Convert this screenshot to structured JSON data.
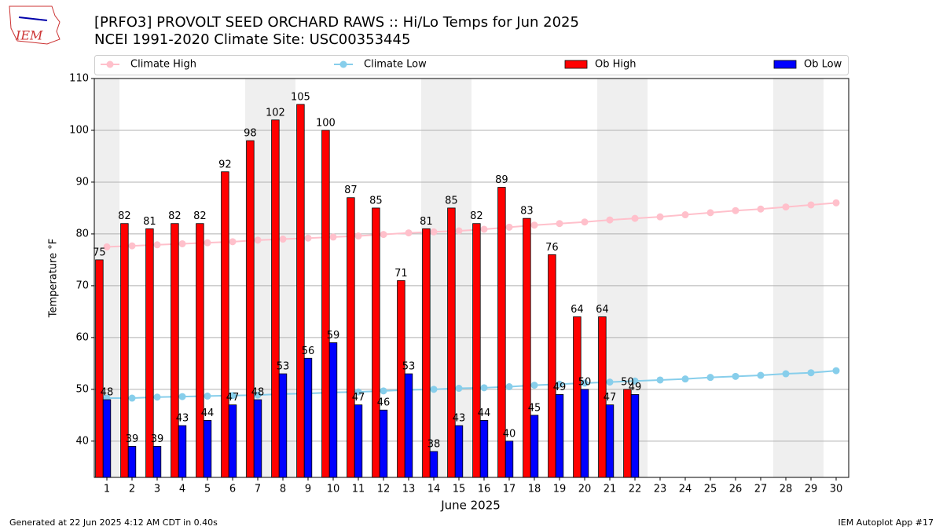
{
  "logo": "IEM",
  "footer_left": "Generated at 22 Jun 2025 4:12 AM CDT in 0.40s",
  "footer_right": "IEM Autoplot App #17",
  "chart_data": {
    "type": "bar",
    "title": "[PRFO3] PROVOLT SEED ORCHARD RAWS :: Hi/Lo Temps for Jun 2025",
    "subtitle": "NCEI 1991-2020 Climate Site: USC00353445",
    "x_label": "June 2025",
    "y_label": "Temperature °F",
    "x": [
      1,
      2,
      3,
      4,
      5,
      6,
      7,
      8,
      9,
      10,
      11,
      12,
      13,
      14,
      15,
      16,
      17,
      18,
      19,
      20,
      21,
      22,
      23,
      24,
      25,
      26,
      27,
      28,
      29,
      30
    ],
    "xlim": [
      0.5,
      30.5
    ],
    "xticks": [
      1,
      2,
      3,
      4,
      5,
      6,
      7,
      8,
      9,
      10,
      11,
      12,
      13,
      14,
      15,
      16,
      17,
      18,
      19,
      20,
      21,
      22,
      23,
      24,
      25,
      26,
      27,
      28,
      29,
      30
    ],
    "ylim": [
      33,
      110
    ],
    "yticks": [
      40,
      50,
      60,
      70,
      80,
      90,
      100,
      110
    ],
    "grid": true,
    "series": [
      {
        "name": "Climate High",
        "type": "line",
        "color": "#ffc0cb",
        "values": [
          77.5,
          77.7,
          77.9,
          78.1,
          78.3,
          78.5,
          78.8,
          79.0,
          79.2,
          79.4,
          79.6,
          79.9,
          80.2,
          80.4,
          80.6,
          80.9,
          81.3,
          81.7,
          82.0,
          82.3,
          82.7,
          83.0,
          83.3,
          83.7,
          84.1,
          84.5,
          84.8,
          85.2,
          85.6,
          86.0
        ]
      },
      {
        "name": "Climate Low",
        "type": "line",
        "color": "#87ceeb",
        "values": [
          48.3,
          48.3,
          48.5,
          48.6,
          48.7,
          48.8,
          48.9,
          49.1,
          49.2,
          49.4,
          49.5,
          49.7,
          49.9,
          50.0,
          50.2,
          50.3,
          50.5,
          50.8,
          51.0,
          51.2,
          51.4,
          51.6,
          51.8,
          52.0,
          52.3,
          52.5,
          52.7,
          53.0,
          53.2,
          53.6
        ]
      },
      {
        "name": "Ob High",
        "type": "bar",
        "color": "#ff0000",
        "values": [
          75,
          82,
          81,
          82,
          82,
          92,
          98,
          102,
          105,
          100,
          87,
          85,
          71,
          81,
          85,
          82,
          89,
          83,
          76,
          64,
          64,
          50,
          null,
          null,
          null,
          null,
          null,
          null,
          null,
          null
        ]
      },
      {
        "name": "Ob Low",
        "type": "bar",
        "color": "#0000ff",
        "values": [
          48,
          39,
          39,
          43,
          44,
          47,
          48,
          53,
          56,
          59,
          47,
          46,
          53,
          38,
          43,
          44,
          40,
          45,
          49,
          50,
          47,
          49,
          null,
          null,
          null,
          null,
          null,
          null,
          null,
          null
        ]
      }
    ]
  }
}
